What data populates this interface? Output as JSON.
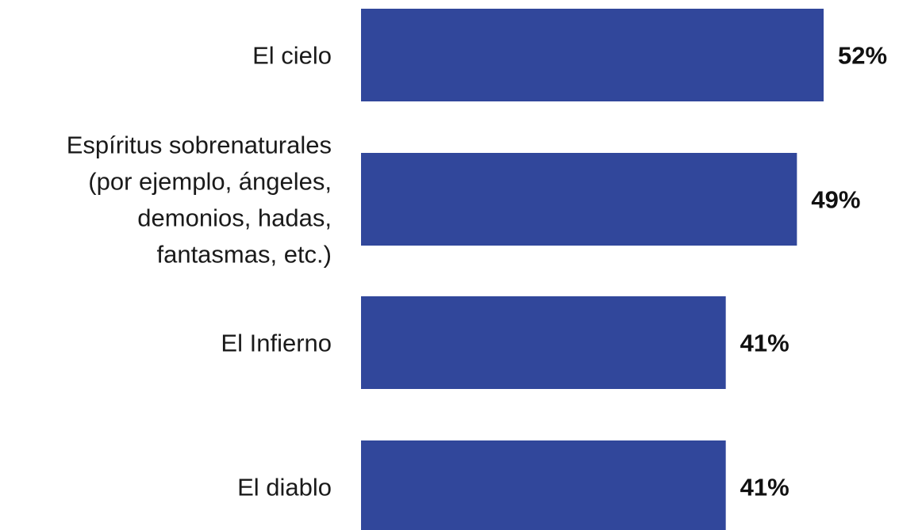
{
  "chart_data": {
    "type": "bar",
    "orientation": "horizontal",
    "categories": [
      "El cielo",
      "Espíritus sobrenaturales (por ejemplo, ángeles, demonios, hadas, fantasmas, etc.)",
      "El Infierno",
      "El diablo"
    ],
    "category_label_lines": [
      [
        "El cielo"
      ],
      [
        "Espíritus sobrenaturales",
        "(por ejemplo, ángeles,",
        "demonios, hadas,",
        "fantasmas, etc.)"
      ],
      [
        "El Infierno"
      ],
      [
        "El diablo"
      ]
    ],
    "values": [
      52,
      49,
      41,
      41
    ],
    "value_labels": [
      "52%",
      "49%",
      "41%",
      "41%"
    ],
    "bar_color": "#31479b",
    "grid": false,
    "legend": "none"
  }
}
